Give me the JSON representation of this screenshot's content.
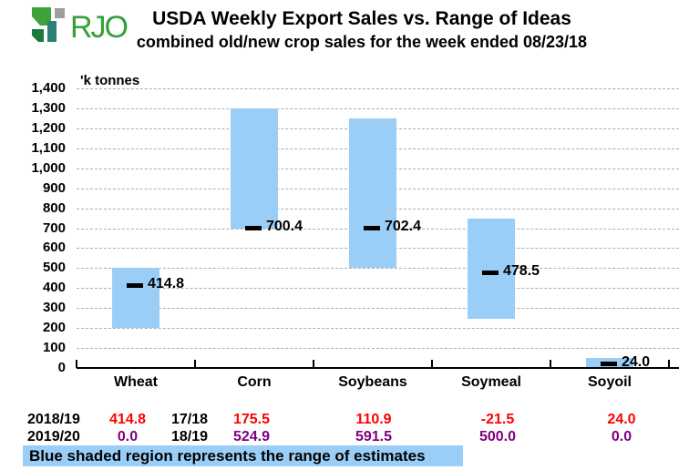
{
  "header": {
    "logo_text": "RJO",
    "title": "USDA Weekly Export Sales vs. Range of Ideas",
    "subtitle": "combined old/new crop sales for the week ended 08/23/18"
  },
  "colors": {
    "range_fill": "#9BCEF7",
    "grid_line": "#ADADAD",
    "axis": "#000000",
    "actual_value": "#FF0000",
    "estimate_value": "#800080",
    "footnote_bg": "#9BCEF7",
    "logo_bright_green": "#3FA33C",
    "logo_dark_green": "#1E7A3C",
    "logo_teal": "#2C8176",
    "logo_gray": "#9E9E9E",
    "logo_text_green": "#34A136"
  },
  "chart_data": {
    "type": "bar",
    "subtype": "floating-range-bars-with-value-markers",
    "title": "USDA Weekly Export Sales vs. Range of Ideas",
    "subtitle": "combined old/new crop sales for the week ended 08/23/18",
    "unit_label": "'k tonnes",
    "categories": [
      "Wheat",
      "Corn",
      "Soybeans",
      "Soymeal",
      "Soyoil"
    ],
    "series": [
      {
        "name": "estimate_range_low",
        "values": [
          200,
          700,
          500,
          250,
          0
        ]
      },
      {
        "name": "estimate_range_high",
        "values": [
          500,
          1300,
          1250,
          750,
          50
        ]
      },
      {
        "name": "reported_sales",
        "values": [
          414.8,
          700.4,
          702.4,
          478.5,
          24.0
        ]
      }
    ],
    "marker_labels": [
      "414.8",
      "700.4",
      "702.4",
      "478.5",
      "24.0"
    ],
    "ylim": [
      0,
      1400
    ],
    "ytick_step": 100,
    "grid": "dashed horizontal",
    "legend": "none"
  },
  "sales_table": {
    "rows": [
      {
        "year_label": "2018/19",
        "alt_year_label": "17/18",
        "values": [
          "414.8",
          "175.5",
          "110.9",
          "-21.5",
          "24.0"
        ],
        "color_key": "actual_value"
      },
      {
        "year_label": "2019/20",
        "alt_year_label": "18/19",
        "values": [
          "0.0",
          "524.9",
          "591.5",
          "500.0",
          "0.0"
        ],
        "color_key": "estimate_value"
      }
    ]
  },
  "footnote": {
    "text": "Blue shaded region represents the range of estimates"
  }
}
